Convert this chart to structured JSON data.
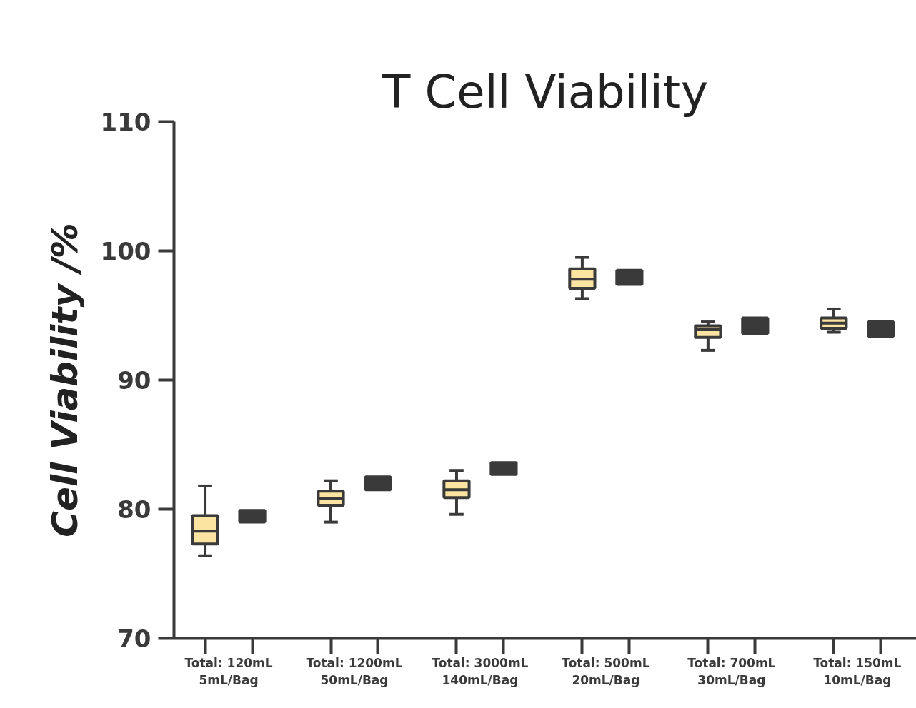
{
  "chart_data": {
    "type": "box",
    "title": "T Cell Viability",
    "ylabel": "Cell Viability /%",
    "categories": [
      "Total: 120mL\n5mL/Bag",
      "Total: 1200mL\n50mL/Bag",
      "Total: 3000mL\n140mL/Bag",
      "Total: 500mL\n20mL/Bag",
      "Total: 700mL\n30mL/Bag",
      "Total: 150mL\n10mL/Bag"
    ],
    "ylim": [
      70,
      110
    ],
    "yticks": [
      70,
      80,
      90,
      100,
      110
    ],
    "grid": false,
    "series": [
      {
        "color": "#fbe3a1",
        "boxes": [
          {
            "low": 76.4,
            "q1": 77.3,
            "median": 78.3,
            "q3": 79.5,
            "high": 81.8
          },
          {
            "low": 79.0,
            "q1": 80.3,
            "median": 80.8,
            "q3": 81.4,
            "high": 82.2
          },
          {
            "low": 79.6,
            "q1": 80.9,
            "median": 81.5,
            "q3": 82.2,
            "high": 83.0
          },
          {
            "low": 96.3,
            "q1": 97.1,
            "median": 97.8,
            "q3": 98.6,
            "high": 99.5
          },
          {
            "low": 92.3,
            "q1": 93.3,
            "median": 93.9,
            "q3": 94.2,
            "high": 94.5
          },
          {
            "low": 93.7,
            "q1": 94.0,
            "median": 94.4,
            "q3": 94.8,
            "high": 95.5
          }
        ]
      },
      {
        "color": "#3a3a3a",
        "boxes": [
          {
            "low": 79.0,
            "q1": 79.0,
            "median": 79.5,
            "q3": 79.9,
            "high": 79.9
          },
          {
            "low": 81.5,
            "q1": 81.5,
            "median": 82.0,
            "q3": 82.5,
            "high": 82.5
          },
          {
            "low": 82.7,
            "q1": 82.7,
            "median": 83.15,
            "q3": 83.6,
            "high": 83.6
          },
          {
            "low": 97.4,
            "q1": 97.4,
            "median": 97.9,
            "q3": 98.5,
            "high": 98.5
          },
          {
            "low": 93.6,
            "q1": 93.6,
            "median": 94.2,
            "q3": 94.8,
            "high": 94.8
          },
          {
            "low": 93.4,
            "q1": 93.4,
            "median": 94.0,
            "q3": 94.5,
            "high": 94.5
          }
        ]
      }
    ]
  }
}
